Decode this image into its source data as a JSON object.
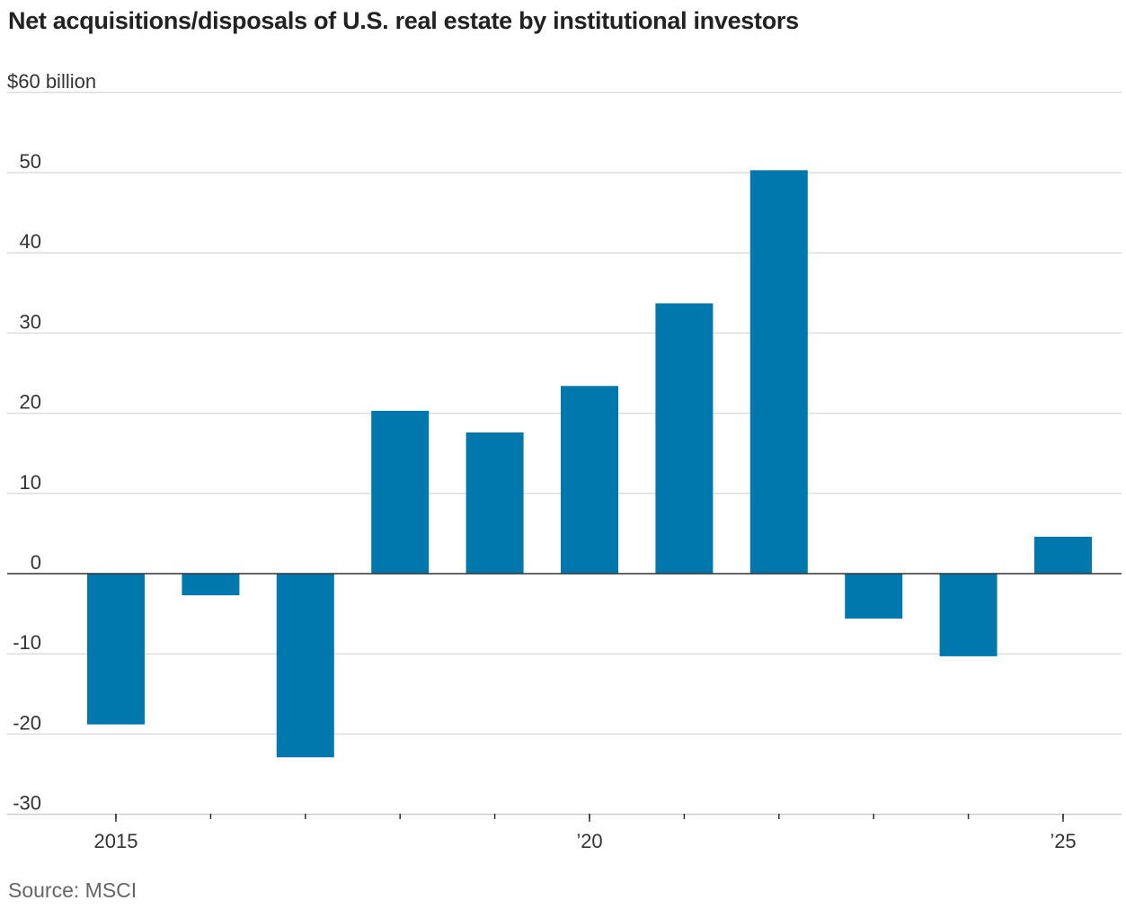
{
  "chart_data": {
    "type": "bar",
    "title": "Net acquisitions/disposals of U.S. real estate by institutional investors",
    "ylabel": "$60 billion",
    "source": "Source: MSCI",
    "categories": [
      "2015",
      "2016",
      "2017",
      "2018",
      "2019",
      "2020",
      "2021",
      "2022",
      "2023",
      "2024",
      "2025"
    ],
    "values": [
      -18.8,
      -2.7,
      -22.9,
      20.3,
      17.6,
      23.4,
      33.7,
      50.3,
      -5.6,
      -10.3,
      4.6
    ],
    "ylim": [
      -30,
      60
    ],
    "yticks": [
      -30,
      -20,
      -10,
      0,
      10,
      20,
      30,
      40,
      50,
      60
    ],
    "ytick_labels": [
      "-30",
      "-20",
      "-10",
      "0",
      "10",
      "20",
      "30",
      "40",
      "50",
      "$60 billion"
    ],
    "xtick_labels": [
      {
        "year": 2015,
        "label": "2015"
      },
      {
        "year": 2020,
        "label": "’20"
      },
      {
        "year": 2025,
        "label": "’25"
      }
    ],
    "grid": true,
    "bar_color": "#0077ad"
  }
}
